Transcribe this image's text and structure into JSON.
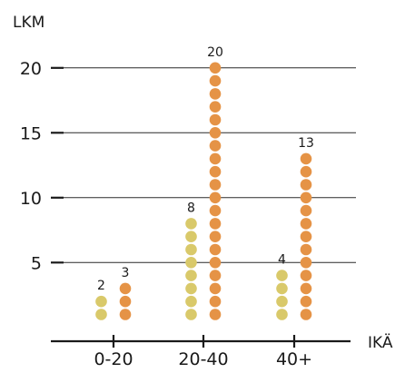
{
  "chart_data": {
    "type": "dot-column",
    "ylabel": "LKM",
    "xlabel": "IKÄ",
    "categories": [
      "0-20",
      "20-40",
      "40+"
    ],
    "series": [
      {
        "name": "",
        "color": "#d9c96a",
        "values": [
          2,
          8,
          4
        ]
      },
      {
        "name": "",
        "color": "#e59346",
        "values": [
          3,
          20,
          13
        ]
      }
    ],
    "yticks": [
      5,
      10,
      15,
      20
    ],
    "ylim": [
      0,
      20
    ],
    "grid": true
  }
}
